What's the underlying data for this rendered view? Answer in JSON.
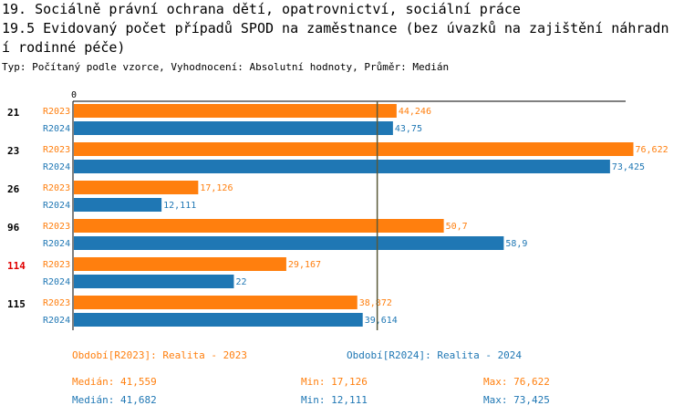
{
  "title_lines": [
    "19. Sociálně právní ochrana dětí, opatrovnictví, sociální práce",
    "19.5 Evidovaný počet případů SPOD na zaměstnance (bez úvazků na zajištění náhradn",
    "í rodinné péče)"
  ],
  "subtitle": "Typ: Počítaný podle vzorce, Vyhodnocení: Absolutní hodnoty, Průměr: Medián",
  "colors": {
    "R2023": "#ff7f0e",
    "R2024": "#1f77b4",
    "highlight": "#e00000",
    "median_line": "#5a5a3a"
  },
  "chart_data": {
    "type": "bar",
    "orientation": "horizontal",
    "axis_zero_label": "0",
    "xlim": [
      0,
      80
    ],
    "categories": [
      "21",
      "23",
      "26",
      "96",
      "114",
      "115"
    ],
    "highlighted_category": "114",
    "series": [
      {
        "name": "R2023",
        "values": [
          44.246,
          76.622,
          17.126,
          50.7,
          29.167,
          38.872
        ],
        "labels": [
          "44,246",
          "76,622",
          "17,126",
          "50,7",
          "29,167",
          "38,872"
        ]
      },
      {
        "name": "R2024",
        "values": [
          43.75,
          73.425,
          12.111,
          58.9,
          22,
          39.614
        ],
        "labels": [
          "43,75",
          "73,425",
          "12,111",
          "58,9",
          "22",
          "39,614"
        ]
      }
    ],
    "median_reference": 41.6
  },
  "legend": {
    "r2023": "Období[R2023]: Realita - 2023",
    "r2024": "Období[R2024]: Realita - 2024"
  },
  "stats": {
    "r2023": {
      "median": "Medián: 41,559",
      "min": "Min: 17,126",
      "max": "Max: 76,622"
    },
    "r2024": {
      "median": "Medián: 41,682",
      "min": "Min: 12,111",
      "max": "Max: 73,425"
    }
  }
}
